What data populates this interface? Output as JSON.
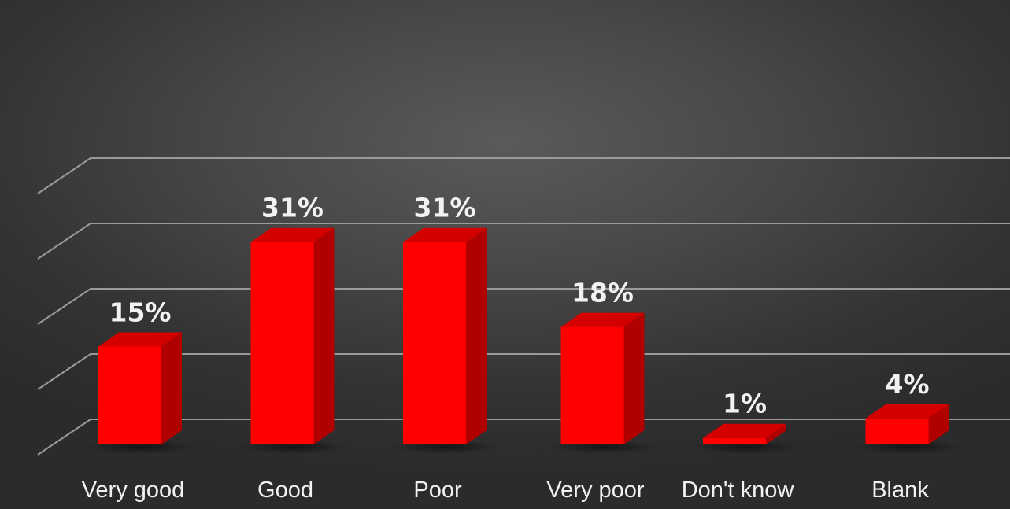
{
  "chart_data": {
    "type": "bar",
    "categories": [
      "Very good",
      "Good",
      "Poor",
      "Very poor",
      "Don't know",
      "Blank"
    ],
    "values": [
      15,
      31,
      31,
      18,
      1,
      4
    ],
    "data_labels": [
      "15%",
      "31%",
      "31%",
      "18%",
      "1%",
      "4%"
    ],
    "title": "",
    "xlabel": "",
    "ylabel": "",
    "ylim": [
      0,
      40
    ],
    "grid": true,
    "style": "3d-column",
    "bar_color": "#ff0000",
    "legend": "none"
  }
}
